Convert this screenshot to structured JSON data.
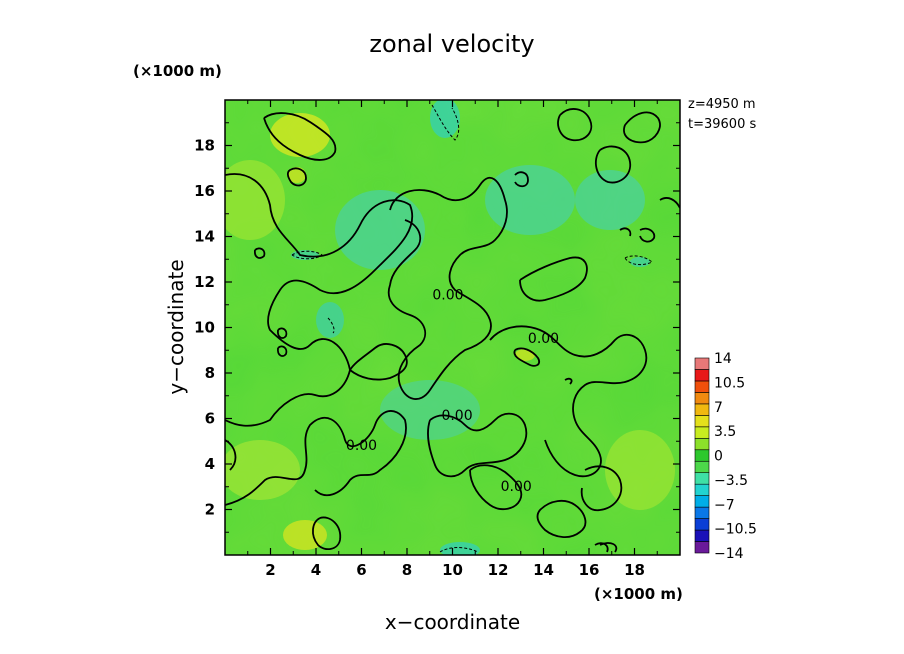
{
  "chart_data": {
    "type": "heatmap",
    "title": "zonal velocity",
    "xlabel": "x−coordinate",
    "ylabel": "y−coordinate",
    "x_unit": "(×1000 m)",
    "y_unit": "(×1000 m)",
    "xlim": [
      0,
      20
    ],
    "ylim": [
      0,
      20
    ],
    "x_ticks": [
      2,
      4,
      6,
      8,
      10,
      12,
      14,
      16,
      18
    ],
    "y_ticks": [
      2,
      4,
      6,
      8,
      10,
      12,
      14,
      16,
      18
    ],
    "x_tick_labels": [
      "2",
      "4",
      "6",
      "8",
      "10",
      "12",
      "14",
      "16",
      "18"
    ],
    "y_tick_labels": [
      "2",
      "4",
      "6",
      "8",
      "10",
      "12",
      "14",
      "16",
      "18"
    ],
    "annotations": {
      "z": "z=4950 m",
      "t": "t=39600 s"
    },
    "contour_labels": [
      {
        "text": "0.00",
        "x": 9.8,
        "y": 11.4
      },
      {
        "text": "0.00",
        "x": 14.0,
        "y": 9.5
      },
      {
        "text": "0.00",
        "x": 10.2,
        "y": 6.1
      },
      {
        "text": "0.00",
        "x": 6.0,
        "y": 4.8
      },
      {
        "text": "0.00",
        "x": 12.8,
        "y": 3.0
      }
    ],
    "colorbar": {
      "levels": [
        -14,
        -12.25,
        -10.5,
        -8.75,
        -7,
        -5.25,
        -3.5,
        -1.75,
        0,
        1.75,
        3.5,
        5.25,
        7,
        8.75,
        10.5,
        12.25,
        14
      ],
      "tick_values": [
        14,
        10.5,
        7,
        3.5,
        0,
        -3.5,
        -7,
        -10.5,
        -14
      ],
      "tick_labels": [
        "14",
        "10.5",
        "7",
        "3.5",
        "0",
        "−3.5",
        "−7",
        "−10.5",
        "−14"
      ],
      "colors": [
        "#6a1a9a",
        "#1a10b8",
        "#0b3fd6",
        "#0a78e8",
        "#00aee8",
        "#22d3d0",
        "#3fe0a6",
        "#4cd84a",
        "#2dc82d",
        "#8ce02a",
        "#c8ec20",
        "#e4e01c",
        "#f0b810",
        "#f08a10",
        "#f0500c",
        "#e81818",
        "#e87878"
      ]
    },
    "grid": false,
    "legend": "right"
  }
}
